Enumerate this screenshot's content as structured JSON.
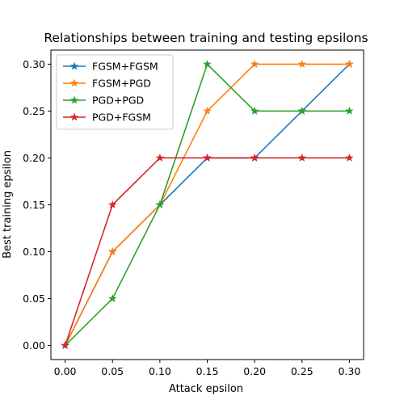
{
  "chart_data": {
    "type": "line",
    "title": "Relationships between training and testing epsilons",
    "xlabel": "Attack epsilon",
    "ylabel": "Best training epsilon",
    "x": [
      0.0,
      0.05,
      0.1,
      0.15,
      0.2,
      0.25,
      0.3
    ],
    "xlim": [
      -0.015,
      0.315
    ],
    "ylim": [
      -0.015,
      0.315
    ],
    "xticks": [
      "0.00",
      "0.05",
      "0.10",
      "0.15",
      "0.20",
      "0.25",
      "0.30"
    ],
    "yticks": [
      "0.00",
      "0.05",
      "0.10",
      "0.15",
      "0.20",
      "0.25",
      "0.30"
    ],
    "grid": false,
    "legend_position": "top-left",
    "marker": "star",
    "series": [
      {
        "name": "FGSM+FGSM",
        "color": "#1f77b4",
        "values": [
          0.0,
          0.1,
          0.15,
          0.2,
          0.2,
          0.25,
          0.3
        ]
      },
      {
        "name": "FGSM+PGD",
        "color": "#ff7f0e",
        "values": [
          0.0,
          0.1,
          0.15,
          0.25,
          0.3,
          0.3,
          0.3
        ]
      },
      {
        "name": "PGD+PGD",
        "color": "#2ca02c",
        "values": [
          0.0,
          0.05,
          0.15,
          0.3,
          0.25,
          0.25,
          0.25
        ]
      },
      {
        "name": "PGD+FGSM",
        "color": "#d62728",
        "values": [
          0.0,
          0.15,
          0.2,
          0.2,
          0.2,
          0.2,
          0.2
        ]
      }
    ]
  }
}
